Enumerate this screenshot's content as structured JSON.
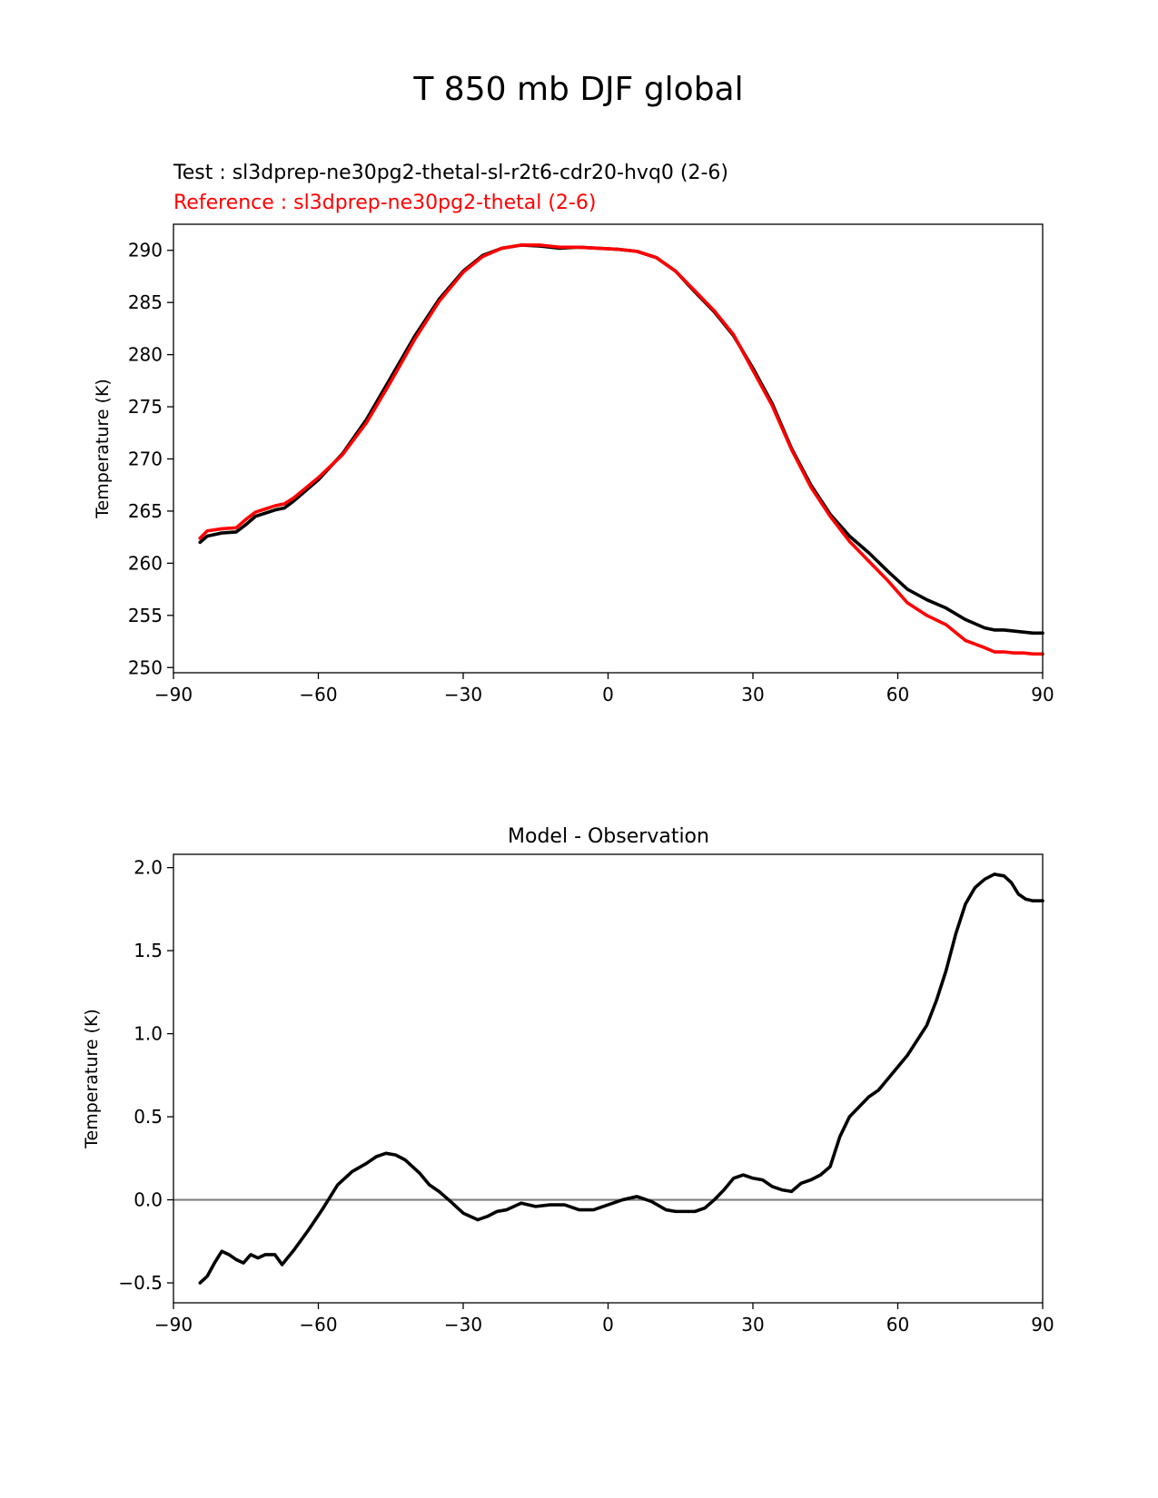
{
  "figure": {
    "title": "T 850 mb DJF global"
  },
  "chart_data": [
    {
      "type": "line",
      "test_label": "Test : sl3dprep-ne30pg2-thetal-sl-r2t6-cdr20-hvq0 (2-6)",
      "ref_label": "Reference : sl3dprep-ne30pg2-thetal (2-6)",
      "xlabel": "",
      "ylabel": "Temperature (K)",
      "xlim": [
        -90,
        90
      ],
      "ylim": [
        249.5,
        292.5
      ],
      "xticks": [
        -90,
        -60,
        -30,
        0,
        30,
        60,
        90
      ],
      "xtick_labels": [
        "−90",
        "−60",
        "−30",
        "0",
        "30",
        "60",
        "90"
      ],
      "yticks": [
        250,
        255,
        260,
        265,
        270,
        275,
        280,
        285,
        290
      ],
      "ytick_labels": [
        "250",
        "255",
        "260",
        "265",
        "270",
        "275",
        "280",
        "285",
        "290"
      ],
      "series": [
        {
          "name": "Test",
          "color": "#000000",
          "x": [
            -84.5,
            -83,
            -80,
            -77,
            -75,
            -73,
            -71,
            -69,
            -67,
            -65,
            -60,
            -55,
            -50,
            -45,
            -40,
            -35,
            -30,
            -26,
            -22,
            -18,
            -14,
            -10,
            -6,
            -2,
            2,
            6,
            10,
            14,
            18,
            22,
            26,
            30,
            34,
            38,
            42,
            46,
            50,
            54,
            58,
            62,
            66,
            70,
            74,
            78,
            80,
            82,
            84,
            86,
            88,
            90
          ],
          "values": [
            262.0,
            262.6,
            262.9,
            263.0,
            263.7,
            264.5,
            264.8,
            265.1,
            265.3,
            266.0,
            268.0,
            270.5,
            273.8,
            277.8,
            281.8,
            285.3,
            288.0,
            289.5,
            290.2,
            290.5,
            290.4,
            290.2,
            290.3,
            290.2,
            290.1,
            289.9,
            289.3,
            288.0,
            286.0,
            284.1,
            281.8,
            278.7,
            275.3,
            271.0,
            267.5,
            264.7,
            262.6,
            261.0,
            259.2,
            257.5,
            256.5,
            255.7,
            254.6,
            253.8,
            253.6,
            253.6,
            253.5,
            253.4,
            253.3,
            253.3
          ]
        },
        {
          "name": "Reference",
          "color": "#ff0000",
          "x": [
            -84.5,
            -83,
            -80,
            -77,
            -75,
            -73,
            -71,
            -69,
            -67,
            -65,
            -60,
            -55,
            -50,
            -45,
            -40,
            -35,
            -30,
            -26,
            -22,
            -18,
            -14,
            -10,
            -6,
            -2,
            2,
            6,
            10,
            14,
            18,
            22,
            26,
            30,
            34,
            38,
            42,
            46,
            50,
            54,
            58,
            62,
            66,
            70,
            74,
            78,
            80,
            82,
            84,
            86,
            88,
            90
          ],
          "values": [
            262.4,
            263.1,
            263.3,
            263.4,
            264.2,
            264.9,
            265.2,
            265.5,
            265.7,
            266.3,
            268.2,
            270.4,
            273.5,
            277.4,
            281.5,
            285.1,
            287.9,
            289.4,
            290.2,
            290.5,
            290.5,
            290.3,
            290.3,
            290.2,
            290.1,
            289.9,
            289.3,
            288.0,
            286.1,
            284.2,
            281.9,
            278.5,
            275.1,
            270.9,
            267.3,
            264.5,
            262.1,
            260.2,
            258.3,
            256.2,
            255.0,
            254.1,
            252.6,
            251.9,
            251.5,
            251.5,
            251.4,
            251.4,
            251.3,
            251.3
          ]
        }
      ]
    },
    {
      "type": "line",
      "title": "Model - Observation",
      "xlabel": "",
      "ylabel": "Temperature (K)",
      "xlim": [
        -90,
        90
      ],
      "ylim": [
        -0.62,
        2.08
      ],
      "xticks": [
        -90,
        -60,
        -30,
        0,
        30,
        60,
        90
      ],
      "xtick_labels": [
        "−90",
        "−60",
        "−30",
        "0",
        "30",
        "60",
        "90"
      ],
      "yticks": [
        -0.5,
        0.0,
        0.5,
        1.0,
        1.5,
        2.0
      ],
      "ytick_labels": [
        "−0.5",
        "0.0",
        "0.5",
        "1.0",
        "1.5",
        "2.0"
      ],
      "zero_line": {
        "value": 0.0,
        "color": "#808080"
      },
      "series": [
        {
          "name": "Model - Observation",
          "color": "#000000",
          "x": [
            -84.5,
            -83,
            -81.5,
            -80,
            -78.5,
            -77,
            -75.5,
            -74,
            -72.5,
            -71,
            -69,
            -67.5,
            -65,
            -62,
            -59,
            -56,
            -53,
            -50,
            -48,
            -46,
            -44,
            -42,
            -39,
            -37,
            -35,
            -33,
            -30,
            -27,
            -25,
            -23,
            -21,
            -18,
            -15,
            -12,
            -9,
            -6,
            -3,
            0,
            3,
            6,
            9,
            12,
            14,
            16,
            18,
            20,
            22,
            24,
            26,
            28,
            30,
            32,
            34,
            36,
            38,
            40,
            42,
            44,
            46,
            48,
            50,
            52,
            54,
            56,
            58,
            60,
            62,
            64,
            66,
            68,
            70,
            72,
            74,
            76,
            78,
            80,
            82,
            83.5,
            85,
            86.5,
            88,
            90
          ],
          "values": [
            -0.5,
            -0.46,
            -0.38,
            -0.31,
            -0.33,
            -0.36,
            -0.38,
            -0.33,
            -0.35,
            -0.33,
            -0.33,
            -0.39,
            -0.3,
            -0.18,
            -0.05,
            0.09,
            0.17,
            0.22,
            0.26,
            0.28,
            0.27,
            0.24,
            0.16,
            0.09,
            0.05,
            0.0,
            -0.08,
            -0.12,
            -0.1,
            -0.07,
            -0.06,
            -0.02,
            -0.04,
            -0.03,
            -0.03,
            -0.06,
            -0.06,
            -0.03,
            0.0,
            0.02,
            -0.01,
            -0.06,
            -0.07,
            -0.07,
            -0.07,
            -0.05,
            0.0,
            0.06,
            0.13,
            0.15,
            0.13,
            0.12,
            0.08,
            0.06,
            0.05,
            0.1,
            0.12,
            0.15,
            0.2,
            0.38,
            0.5,
            0.56,
            0.62,
            0.66,
            0.73,
            0.8,
            0.87,
            0.96,
            1.05,
            1.2,
            1.38,
            1.6,
            1.78,
            1.88,
            1.93,
            1.96,
            1.95,
            1.91,
            1.84,
            1.81,
            1.8,
            1.8
          ]
        }
      ]
    }
  ]
}
